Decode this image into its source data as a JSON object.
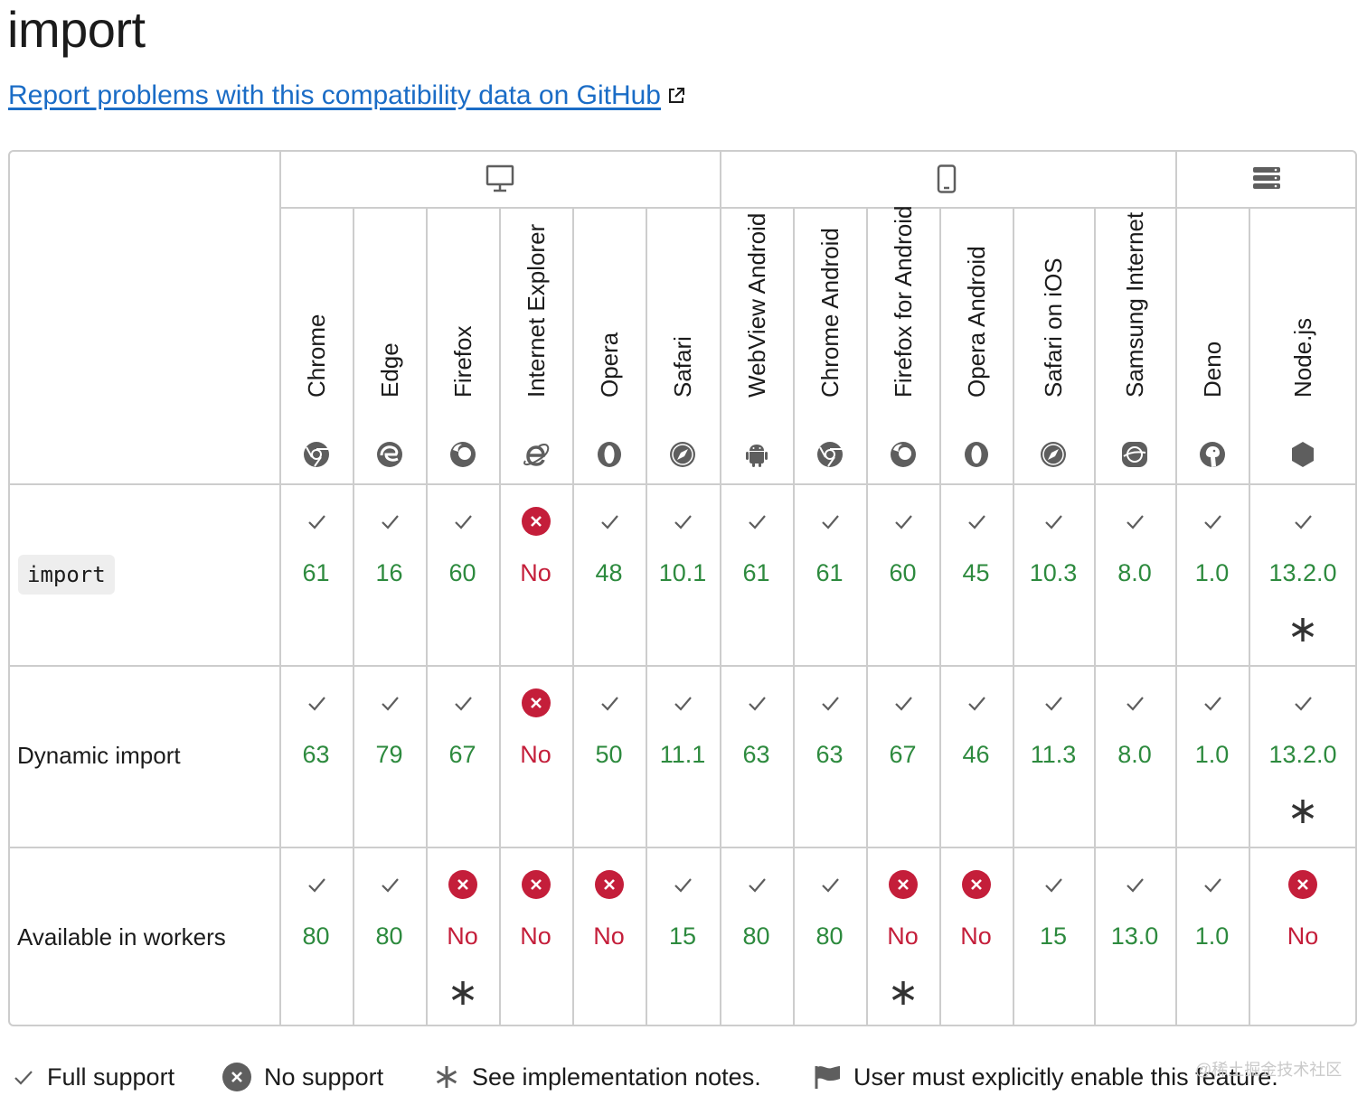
{
  "title": "import",
  "report_link": "Report problems with this compatibility data on GitHub",
  "platforms": [
    {
      "name": "desktop-icon"
    },
    {
      "name": "mobile-icon"
    },
    {
      "name": "server-icon"
    }
  ],
  "browsers": [
    {
      "label": "Chrome",
      "icon": "chrome-icon"
    },
    {
      "label": "Edge",
      "icon": "edge-icon"
    },
    {
      "label": "Firefox",
      "icon": "firefox-icon"
    },
    {
      "label": "Internet Explorer",
      "icon": "internet-explorer-icon"
    },
    {
      "label": "Opera",
      "icon": "opera-icon"
    },
    {
      "label": "Safari",
      "icon": "safari-icon"
    },
    {
      "label": "WebView Android",
      "icon": "android-icon"
    },
    {
      "label": "Chrome Android",
      "icon": "chrome-icon"
    },
    {
      "label": "Firefox for Android",
      "icon": "firefox-icon"
    },
    {
      "label": "Opera Android",
      "icon": "opera-icon"
    },
    {
      "label": "Safari on iOS",
      "icon": "safari-icon"
    },
    {
      "label": "Samsung Internet",
      "icon": "samsung-internet-icon"
    },
    {
      "label": "Deno",
      "icon": "deno-icon"
    },
    {
      "label": "Node.js",
      "icon": "nodejs-icon"
    }
  ],
  "features": [
    {
      "label": "import",
      "is_code": true,
      "cells": [
        {
          "value": "61",
          "support": "yes",
          "note": false
        },
        {
          "value": "16",
          "support": "yes",
          "note": false
        },
        {
          "value": "60",
          "support": "yes",
          "note": false
        },
        {
          "value": "No",
          "support": "no",
          "note": false
        },
        {
          "value": "48",
          "support": "yes",
          "note": false
        },
        {
          "value": "10.1",
          "support": "yes",
          "note": false
        },
        {
          "value": "61",
          "support": "yes",
          "note": false
        },
        {
          "value": "61",
          "support": "yes",
          "note": false
        },
        {
          "value": "60",
          "support": "yes",
          "note": false
        },
        {
          "value": "45",
          "support": "yes",
          "note": false
        },
        {
          "value": "10.3",
          "support": "yes",
          "note": false
        },
        {
          "value": "8.0",
          "support": "yes",
          "note": false
        },
        {
          "value": "1.0",
          "support": "yes",
          "note": false
        },
        {
          "value": "13.2.0",
          "support": "yes",
          "note": true
        }
      ]
    },
    {
      "label": "Dynamic import",
      "is_code": false,
      "cells": [
        {
          "value": "63",
          "support": "yes",
          "note": false
        },
        {
          "value": "79",
          "support": "yes",
          "note": false
        },
        {
          "value": "67",
          "support": "yes",
          "note": false
        },
        {
          "value": "No",
          "support": "no",
          "note": false
        },
        {
          "value": "50",
          "support": "yes",
          "note": false
        },
        {
          "value": "11.1",
          "support": "yes",
          "note": false
        },
        {
          "value": "63",
          "support": "yes",
          "note": false
        },
        {
          "value": "63",
          "support": "yes",
          "note": false
        },
        {
          "value": "67",
          "support": "yes",
          "note": false
        },
        {
          "value": "46",
          "support": "yes",
          "note": false
        },
        {
          "value": "11.3",
          "support": "yes",
          "note": false
        },
        {
          "value": "8.0",
          "support": "yes",
          "note": false
        },
        {
          "value": "1.0",
          "support": "yes",
          "note": false
        },
        {
          "value": "13.2.0",
          "support": "yes",
          "note": true
        }
      ]
    },
    {
      "label": "Available in workers",
      "is_code": false,
      "cells": [
        {
          "value": "80",
          "support": "yes",
          "note": false
        },
        {
          "value": "80",
          "support": "yes",
          "note": false
        },
        {
          "value": "No",
          "support": "no",
          "note": true
        },
        {
          "value": "No",
          "support": "no",
          "note": false
        },
        {
          "value": "No",
          "support": "no",
          "note": false
        },
        {
          "value": "15",
          "support": "yes",
          "note": false
        },
        {
          "value": "80",
          "support": "yes",
          "note": false
        },
        {
          "value": "80",
          "support": "yes",
          "note": false
        },
        {
          "value": "No",
          "support": "no",
          "note": true
        },
        {
          "value": "No",
          "support": "no",
          "note": false
        },
        {
          "value": "15",
          "support": "yes",
          "note": false
        },
        {
          "value": "13.0",
          "support": "yes",
          "note": false
        },
        {
          "value": "1.0",
          "support": "yes",
          "note": false
        },
        {
          "value": "No",
          "support": "no",
          "note": false
        }
      ]
    }
  ],
  "legend": {
    "full_support": "Full support",
    "no_support": "No support",
    "notes": "See implementation notes.",
    "flag": "User must explicitly enable this feature."
  },
  "watermark": "@稀土掘金技术社区",
  "colors": {
    "supported": "#2d8a3e",
    "unsupported": "#c41e3a",
    "link": "#1a6cc6",
    "border": "#cdcdcd"
  }
}
